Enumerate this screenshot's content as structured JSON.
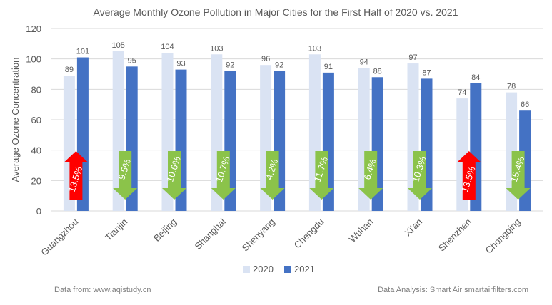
{
  "chart_data": {
    "type": "bar",
    "title": "Average Monthly Ozone Pollution in Major Cities for the First Half of 2020 vs. 2021",
    "ylabel": "Average Ozone Concentration",
    "xlabel": "",
    "ylim": [
      0,
      120
    ],
    "yticks": [
      0,
      20,
      40,
      60,
      80,
      100,
      120
    ],
    "grid": true,
    "legend_position": "bottom",
    "categories": [
      "Guangzhou",
      "Tianjin",
      "Beijing",
      "Shanghai",
      "Shenyang",
      "Chengdu",
      "Wuhan",
      "Xi'an",
      "Shenzhen",
      "Chongqing"
    ],
    "series": [
      {
        "name": "2020",
        "color": "#dae3f3",
        "values": [
          89,
          105,
          104,
          103,
          96,
          103,
          94,
          97,
          74,
          78
        ]
      },
      {
        "name": "2021",
        "color": "#4472c4",
        "values": [
          101,
          95,
          93,
          92,
          92,
          91,
          88,
          87,
          84,
          66
        ]
      }
    ],
    "annotations": [
      {
        "label": "13.5%",
        "direction": "up",
        "color": "#ff0000"
      },
      {
        "label": "9.5%",
        "direction": "down",
        "color": "#8bc34a"
      },
      {
        "label": "10.6%",
        "direction": "down",
        "color": "#8bc34a"
      },
      {
        "label": "10.7%",
        "direction": "down",
        "color": "#8bc34a"
      },
      {
        "label": "4.2%",
        "direction": "down",
        "color": "#8bc34a"
      },
      {
        "label": "11.7%",
        "direction": "down",
        "color": "#8bc34a"
      },
      {
        "label": "6.4%",
        "direction": "down",
        "color": "#8bc34a"
      },
      {
        "label": "10.3%",
        "direction": "down",
        "color": "#8bc34a"
      },
      {
        "label": "13.5%",
        "direction": "up",
        "color": "#ff0000"
      },
      {
        "label": "15.4%",
        "direction": "down",
        "color": "#8bc34a"
      }
    ]
  },
  "footer": {
    "source": "Data from: www.aqistudy.cn",
    "analysis": "Data Analysis: Smart Air smartairfilters.com"
  }
}
